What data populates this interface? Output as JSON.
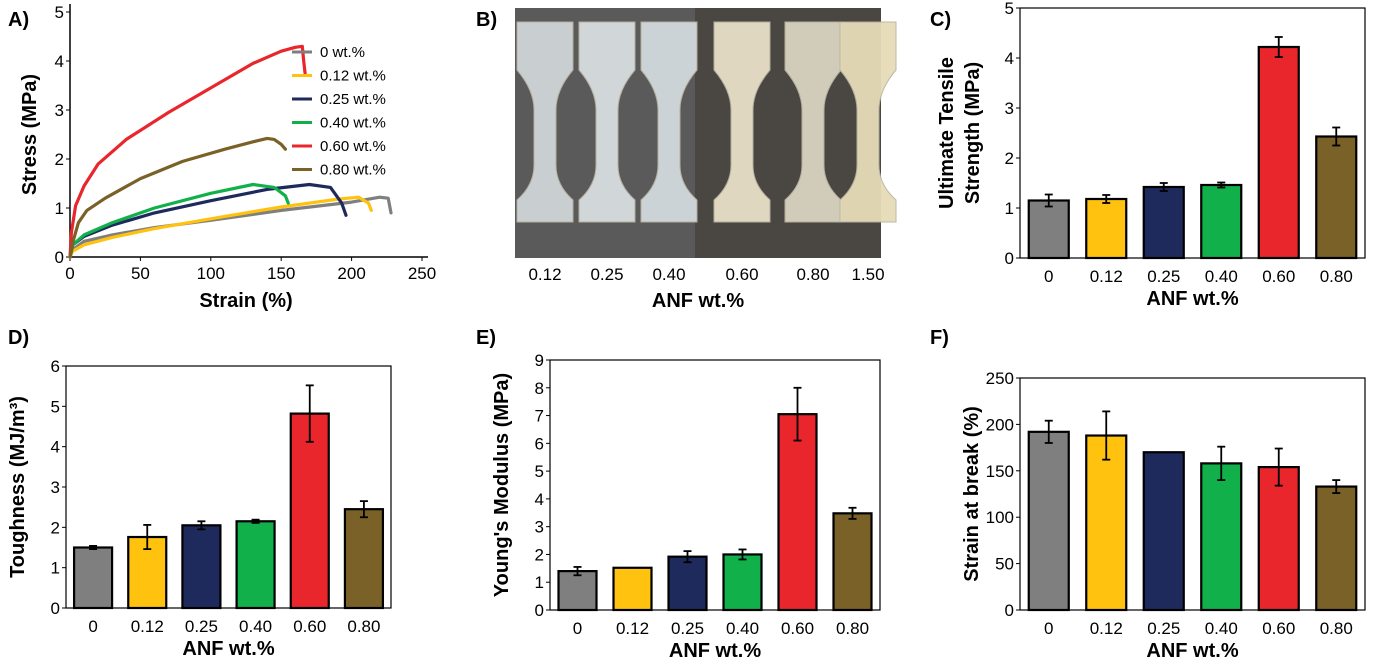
{
  "colors": {
    "c0": "#7f7f7f",
    "c012": "#ffc20e",
    "c025": "#1f2a5c",
    "c040": "#12b04b",
    "c060": "#e8262c",
    "c080": "#7a6128"
  },
  "panels": {
    "A": {
      "label": "A)",
      "legend": [
        "0 wt.%",
        "0.12 wt.%",
        "0.25 wt.%",
        "0.40 wt.%",
        "0.60 wt.%",
        "0.80 wt.%"
      ]
    },
    "B": {
      "label": "B)",
      "samples": [
        "0.12",
        "0.25",
        "0.40",
        "0.60",
        "0.80",
        "1.50"
      ],
      "xlabel": "ANF wt.%"
    },
    "C": {
      "label": "C)"
    },
    "D": {
      "label": "D)"
    },
    "E": {
      "label": "E)"
    },
    "F": {
      "label": "F)"
    }
  },
  "chart_data": [
    {
      "id": "A",
      "type": "line",
      "title": "",
      "xlabel": "Strain (%)",
      "ylabel": "Stress (MPa)",
      "xlim": [
        0,
        250
      ],
      "ylim": [
        0,
        5
      ],
      "xticks": [
        0,
        50,
        100,
        150,
        200,
        250
      ],
      "yticks": [
        0,
        1,
        2,
        3,
        4,
        5
      ],
      "legend_position": "top-right",
      "series": [
        {
          "name": "0 wt.%",
          "color": "#7f7f7f",
          "points": [
            [
              0,
              0
            ],
            [
              2,
              0.15
            ],
            [
              10,
              0.32
            ],
            [
              30,
              0.45
            ],
            [
              60,
              0.6
            ],
            [
              100,
              0.75
            ],
            [
              150,
              0.95
            ],
            [
              200,
              1.12
            ],
            [
              220,
              1.22
            ],
            [
              226,
              1.2
            ],
            [
              228,
              0.9
            ]
          ]
        },
        {
          "name": "0.12 wt.%",
          "color": "#ffc20e",
          "points": [
            [
              0,
              0
            ],
            [
              2,
              0.12
            ],
            [
              10,
              0.25
            ],
            [
              30,
              0.4
            ],
            [
              60,
              0.58
            ],
            [
              100,
              0.78
            ],
            [
              150,
              1.02
            ],
            [
              190,
              1.18
            ],
            [
              205,
              1.22
            ],
            [
              212,
              1.1
            ],
            [
              214,
              0.95
            ]
          ]
        },
        {
          "name": "0.25 wt.%",
          "color": "#1f2a5c",
          "points": [
            [
              0,
              0
            ],
            [
              2,
              0.25
            ],
            [
              10,
              0.42
            ],
            [
              30,
              0.65
            ],
            [
              60,
              0.9
            ],
            [
              100,
              1.15
            ],
            [
              140,
              1.38
            ],
            [
              170,
              1.48
            ],
            [
              185,
              1.42
            ],
            [
              193,
              1.1
            ],
            [
              196,
              0.85
            ]
          ]
        },
        {
          "name": "0.40 wt.%",
          "color": "#12b04b",
          "points": [
            [
              0,
              0
            ],
            [
              2,
              0.25
            ],
            [
              10,
              0.45
            ],
            [
              30,
              0.7
            ],
            [
              60,
              1.0
            ],
            [
              100,
              1.3
            ],
            [
              130,
              1.48
            ],
            [
              145,
              1.42
            ],
            [
              153,
              1.25
            ],
            [
              155,
              1.1
            ]
          ]
        },
        {
          "name": "0.60 wt.%",
          "color": "#e8262c",
          "points": [
            [
              0,
              0
            ],
            [
              1,
              0.5
            ],
            [
              4,
              1.05
            ],
            [
              10,
              1.45
            ],
            [
              20,
              1.9
            ],
            [
              40,
              2.4
            ],
            [
              70,
              2.95
            ],
            [
              100,
              3.45
            ],
            [
              130,
              3.95
            ],
            [
              150,
              4.2
            ],
            [
              160,
              4.28
            ],
            [
              165,
              4.3
            ],
            [
              166,
              4.0
            ],
            [
              167,
              3.75
            ]
          ]
        },
        {
          "name": "0.80 wt.%",
          "color": "#7a6128",
          "points": [
            [
              0,
              0
            ],
            [
              2,
              0.3
            ],
            [
              6,
              0.7
            ],
            [
              12,
              0.95
            ],
            [
              25,
              1.2
            ],
            [
              50,
              1.6
            ],
            [
              80,
              1.95
            ],
            [
              110,
              2.2
            ],
            [
              130,
              2.35
            ],
            [
              140,
              2.42
            ],
            [
              145,
              2.4
            ],
            [
              150,
              2.3
            ],
            [
              153,
              2.2
            ]
          ]
        }
      ]
    },
    {
      "id": "C",
      "type": "bar",
      "xlabel": "ANF wt.%",
      "ylabel_lines": [
        "Ultimate Tensile",
        "Strength (MPa)"
      ],
      "categories": [
        "0",
        "0.12",
        "0.25",
        "0.40",
        "0.60",
        "0.80"
      ],
      "values": [
        1.15,
        1.18,
        1.42,
        1.46,
        4.22,
        2.43
      ],
      "errors": [
        0.12,
        0.08,
        0.08,
        0.05,
        0.2,
        0.18
      ],
      "ylim": [
        0,
        5
      ],
      "yticks": [
        0,
        1,
        2,
        3,
        4,
        5
      ]
    },
    {
      "id": "D",
      "type": "bar",
      "xlabel": "ANF wt.%",
      "ylabel": "Toughness (MJ/m³)",
      "categories": [
        "0",
        "0.12",
        "0.25",
        "0.40",
        "0.60",
        "0.80"
      ],
      "values": [
        1.5,
        1.76,
        2.05,
        2.15,
        4.82,
        2.45
      ],
      "errors": [
        0.04,
        0.3,
        0.1,
        0.04,
        0.7,
        0.2
      ],
      "ylim": [
        0,
        6
      ],
      "yticks": [
        0,
        1,
        2,
        3,
        4,
        5,
        6
      ]
    },
    {
      "id": "E",
      "type": "bar",
      "xlabel": "ANF wt.%",
      "ylabel": "Young's Modulus (MPa)",
      "categories": [
        "0",
        "0.12",
        "0.25",
        "0.40",
        "0.60",
        "0.80"
      ],
      "values": [
        1.4,
        1.52,
        1.92,
        2.0,
        7.05,
        3.48
      ],
      "errors": [
        0.15,
        0.0,
        0.2,
        0.18,
        0.95,
        0.2
      ],
      "ylim": [
        0,
        9
      ],
      "yticks": [
        0,
        1,
        2,
        3,
        4,
        5,
        6,
        7,
        8,
        9
      ]
    },
    {
      "id": "F",
      "type": "bar",
      "xlabel": "ANF wt.%",
      "ylabel": "Strain at break (%)",
      "categories": [
        "0",
        "0.12",
        "0.25",
        "0.40",
        "0.60",
        "0.80"
      ],
      "values": [
        192,
        188,
        170,
        158,
        154,
        133
      ],
      "errors": [
        12,
        26,
        0,
        18,
        20,
        7
      ],
      "ylim": [
        0,
        250
      ],
      "yticks": [
        0,
        50,
        100,
        150,
        200,
        250
      ]
    }
  ]
}
